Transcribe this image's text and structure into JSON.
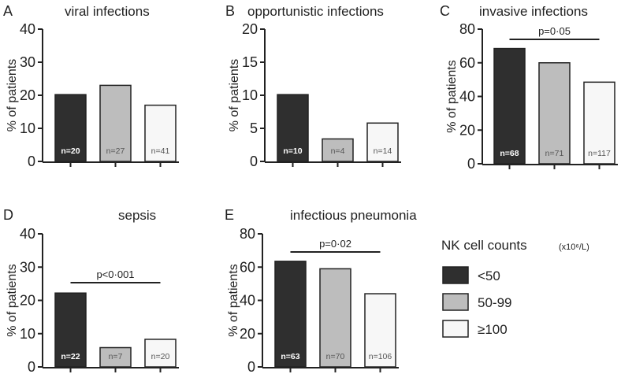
{
  "colors": {
    "lt50": "#2f2f2f",
    "50to99": "#bdbdbd",
    "ge100": "#f7f7f7",
    "axis": "#222222"
  },
  "legend": {
    "title": "NK cell counts",
    "unit": "(x10⁶/L)",
    "items": [
      {
        "label": "<50",
        "color_key": "lt50"
      },
      {
        "label": "50-99",
        "color_key": "50to99"
      },
      {
        "label": "≥100",
        "color_key": "ge100"
      }
    ]
  },
  "chart_data": [
    {
      "type": "bar",
      "panel": "A",
      "title": "viral infections",
      "ylabel": "% of patients",
      "ylim": [
        0,
        40
      ],
      "yticks": [
        0,
        10,
        20,
        30,
        40
      ],
      "series": [
        {
          "group": "<50",
          "value": 20.2,
          "n": "n=20"
        },
        {
          "group": "50-99",
          "value": 23.0,
          "n": "n=27"
        },
        {
          "group": "≥100",
          "value": 17.0,
          "n": "n=41"
        }
      ],
      "pvalue": ""
    },
    {
      "type": "bar",
      "panel": "B",
      "title": "opportunistic infections",
      "ylabel": "% of patients",
      "ylim": [
        0,
        20
      ],
      "yticks": [
        0,
        5,
        10,
        15,
        20
      ],
      "series": [
        {
          "group": "<50",
          "value": 10.1,
          "n": "n=10"
        },
        {
          "group": "50-99",
          "value": 3.4,
          "n": "n=4"
        },
        {
          "group": "≥100",
          "value": 5.8,
          "n": "n=14"
        }
      ],
      "pvalue": ""
    },
    {
      "type": "bar",
      "panel": "C",
      "title": "invasive infections",
      "ylabel": "% of patients",
      "ylim": [
        0,
        80
      ],
      "yticks": [
        0,
        20,
        40,
        60,
        80
      ],
      "series": [
        {
          "group": "<50",
          "value": 68.5,
          "n": "n=68"
        },
        {
          "group": "50-99",
          "value": 60.0,
          "n": "n=71"
        },
        {
          "group": "≥100",
          "value": 48.5,
          "n": "n=117"
        }
      ],
      "pvalue": "p=0·05"
    },
    {
      "type": "bar",
      "panel": "D",
      "title": "sepsis",
      "ylabel": "% of patients",
      "ylim": [
        0,
        40
      ],
      "yticks": [
        0,
        10,
        20,
        30,
        40
      ],
      "series": [
        {
          "group": "<50",
          "value": 22.2,
          "n": "n=22"
        },
        {
          "group": "50-99",
          "value": 5.8,
          "n": "n=7"
        },
        {
          "group": "≥100",
          "value": 8.3,
          "n": "n=20"
        }
      ],
      "pvalue": "p<0·001"
    },
    {
      "type": "bar",
      "panel": "E",
      "title": "infectious pneumonia",
      "ylabel": "% of patients",
      "ylim": [
        0,
        80
      ],
      "yticks": [
        0,
        20,
        40,
        60,
        80
      ],
      "series": [
        {
          "group": "<50",
          "value": 63.5,
          "n": "n=63"
        },
        {
          "group": "50-99",
          "value": 59.0,
          "n": "n=70"
        },
        {
          "group": "≥100",
          "value": 44.0,
          "n": "n=106"
        }
      ],
      "pvalue": "p=0·02"
    }
  ]
}
